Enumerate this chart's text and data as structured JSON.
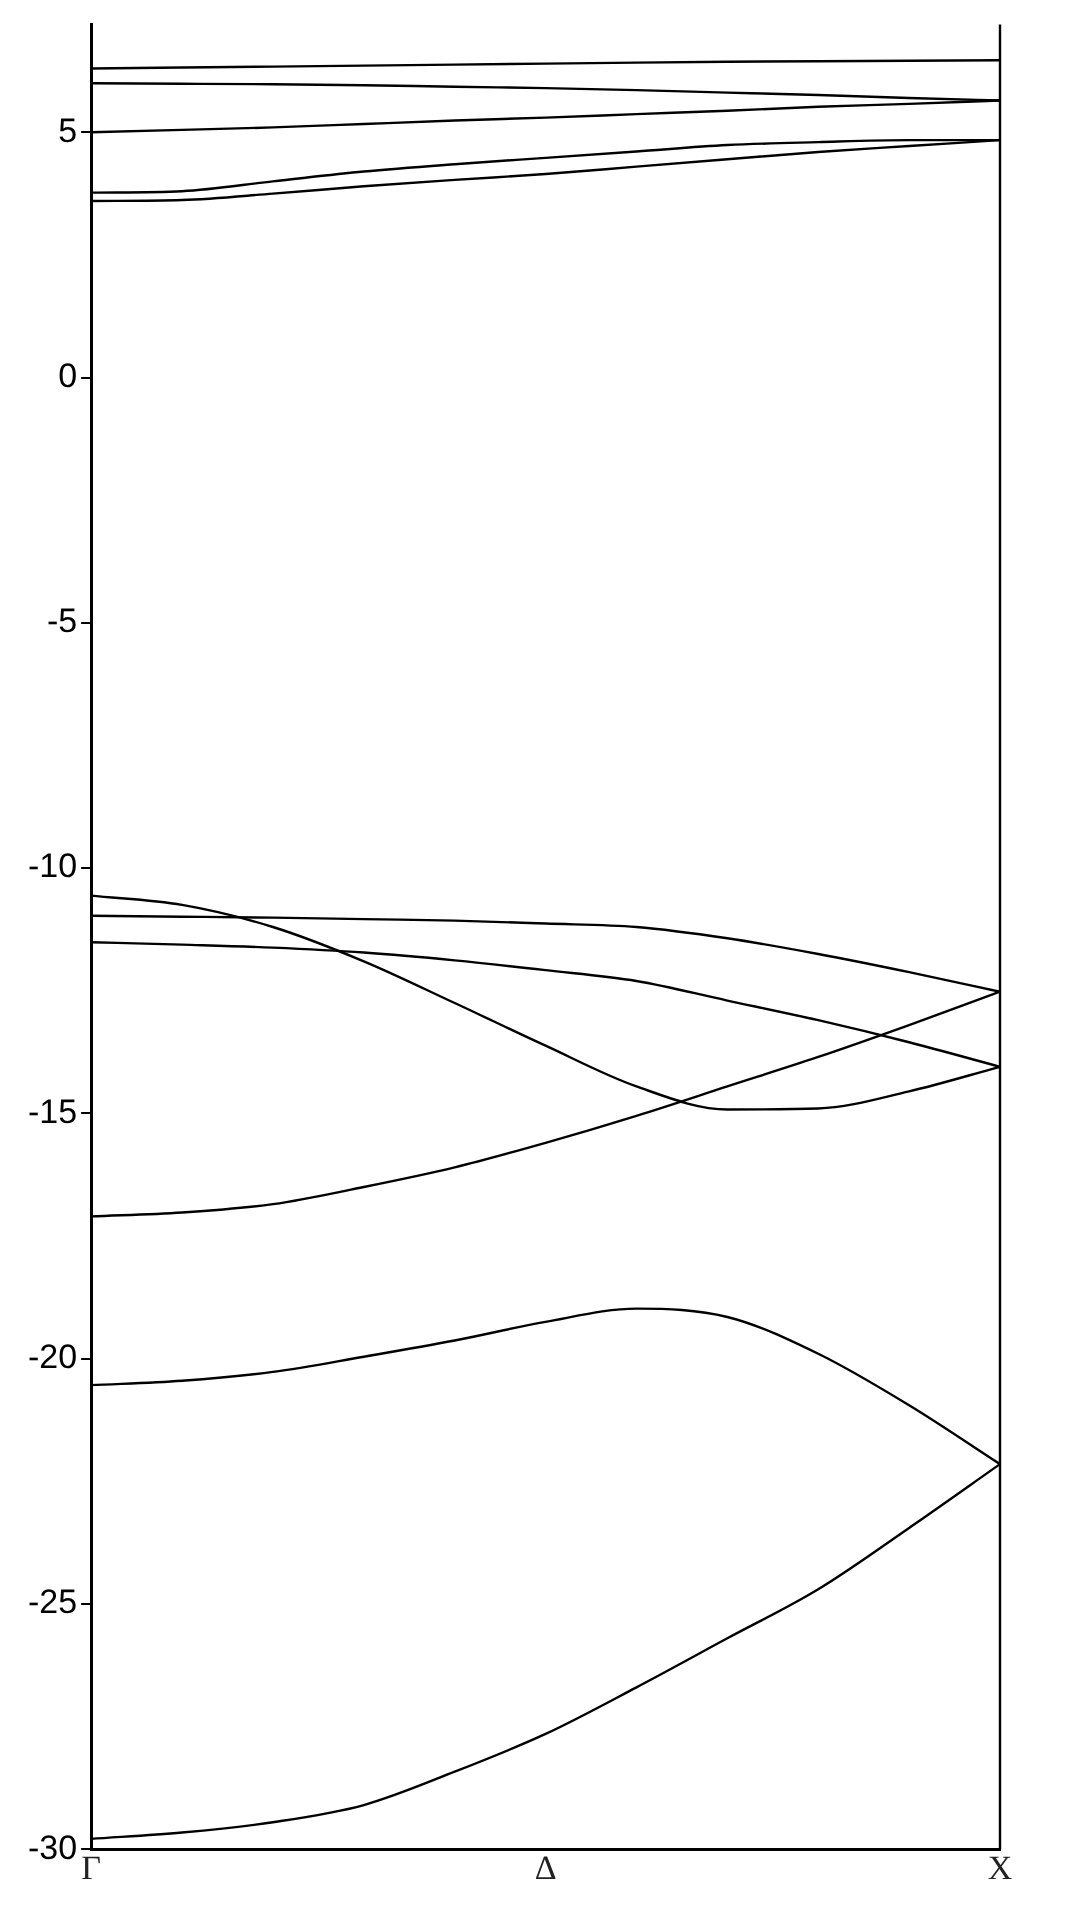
{
  "chart_data": {
    "type": "line",
    "categories": [
      "Γ",
      null,
      null,
      null,
      null,
      "Δ",
      null,
      null,
      null,
      null,
      "X"
    ],
    "ylim": [
      -30,
      7.2
    ],
    "yticks": [
      5,
      0,
      -5,
      -10,
      -15,
      -20,
      -25,
      -30
    ],
    "legend": false,
    "marker": "none",
    "line_style": "solid",
    "series": [
      {
        "color": "#000000",
        "values": [
          6.3,
          6.32,
          6.34,
          6.36,
          6.38,
          6.4,
          6.42,
          6.44,
          6.45,
          6.46,
          6.47
        ]
      },
      {
        "color": "#000000",
        "values": [
          6.0,
          5.99,
          5.98,
          5.96,
          5.93,
          5.9,
          5.86,
          5.81,
          5.76,
          5.7,
          5.65
        ]
      },
      {
        "color": "#000000",
        "values": [
          5.0,
          5.05,
          5.1,
          5.17,
          5.24,
          5.3,
          5.37,
          5.44,
          5.52,
          5.58,
          5.65
        ]
      },
      {
        "color": "#000000",
        "values": [
          3.77,
          3.8,
          4.0,
          4.2,
          4.35,
          4.48,
          4.61,
          4.74,
          4.8,
          4.84,
          4.84
        ]
      },
      {
        "color": "#000000",
        "values": [
          3.6,
          3.62,
          3.75,
          3.9,
          4.03,
          4.15,
          4.3,
          4.45,
          4.6,
          4.72,
          4.84
        ]
      },
      {
        "color": "#000000",
        "values": [
          -10.56,
          -10.75,
          -11.2,
          -11.9,
          -12.75,
          -13.62,
          -14.45,
          -14.92,
          -14.9,
          -14.55,
          -14.05
        ]
      },
      {
        "color": "#000000",
        "values": [
          -10.97,
          -10.99,
          -11.01,
          -11.04,
          -11.07,
          -11.13,
          -11.2,
          -11.43,
          -11.75,
          -12.12,
          -12.52
        ]
      },
      {
        "color": "#000000",
        "values": [
          -11.51,
          -11.56,
          -11.62,
          -11.72,
          -11.88,
          -12.08,
          -12.3,
          -12.7,
          -13.1,
          -13.55,
          -14.05
        ]
      },
      {
        "color": "#000000",
        "values": [
          -17.1,
          -17.02,
          -16.85,
          -16.5,
          -16.1,
          -15.6,
          -15.05,
          -14.45,
          -13.85,
          -13.2,
          -12.52
        ]
      },
      {
        "color": "#000000",
        "values": [
          -20.54,
          -20.45,
          -20.27,
          -19.96,
          -19.63,
          -19.25,
          -18.98,
          -19.15,
          -19.9,
          -20.95,
          -22.15
        ]
      },
      {
        "color": "#000000",
        "values": [
          -29.79,
          -29.66,
          -29.45,
          -29.1,
          -28.42,
          -27.65,
          -26.7,
          -25.7,
          -24.7,
          -23.45,
          -22.15
        ]
      }
    ]
  }
}
